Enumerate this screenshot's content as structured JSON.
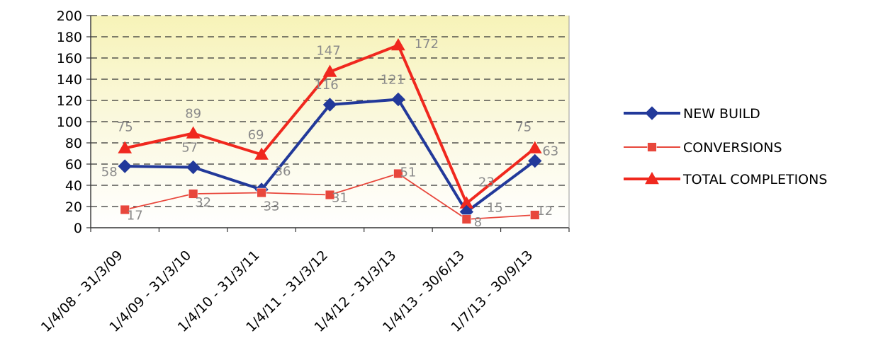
{
  "chart_data": {
    "type": "line",
    "categories": [
      "1/4/08 - 31/3/09",
      "1/4/09 - 31/3/10",
      "1/4/10 - 31/3/11",
      "1/4/11 - 31/3/12",
      "1/4/12 - 31/3/13",
      "1/4/13 - 30/6/13",
      "1/7/13 - 30/9/13"
    ],
    "series": [
      {
        "name": "NEW BUILD",
        "values": [
          58,
          57,
          36,
          116,
          121,
          15,
          63
        ],
        "data_labels": [
          "58",
          "57",
          "36",
          "116",
          "121",
          "15",
          "63"
        ],
        "color": "#22399a",
        "marker": "diamond"
      },
      {
        "name": "CONVERSIONS",
        "values": [
          17,
          32,
          33,
          31,
          51,
          8,
          12
        ],
        "data_labels": [
          "17",
          "32",
          "33",
          "31",
          "51",
          "8",
          "12"
        ],
        "color": "#e8473c",
        "marker": "square"
      },
      {
        "name": "TOTAL COMPLETIONS",
        "values": [
          75,
          89,
          69,
          147,
          172,
          23,
          75
        ],
        "data_labels": [
          "75",
          "89",
          "69",
          "147",
          "172",
          "23",
          "75"
        ],
        "color": "#f0281e",
        "marker": "triangle"
      }
    ],
    "y_ticks": [
      "200",
      "180",
      "160",
      "140",
      "120",
      "100",
      "80",
      "60",
      "40",
      "20",
      "0"
    ],
    "ylim": [
      0,
      200
    ],
    "grid": "horizontal dashed",
    "plot_background": "pale yellow gradient",
    "legend_position": "right"
  }
}
